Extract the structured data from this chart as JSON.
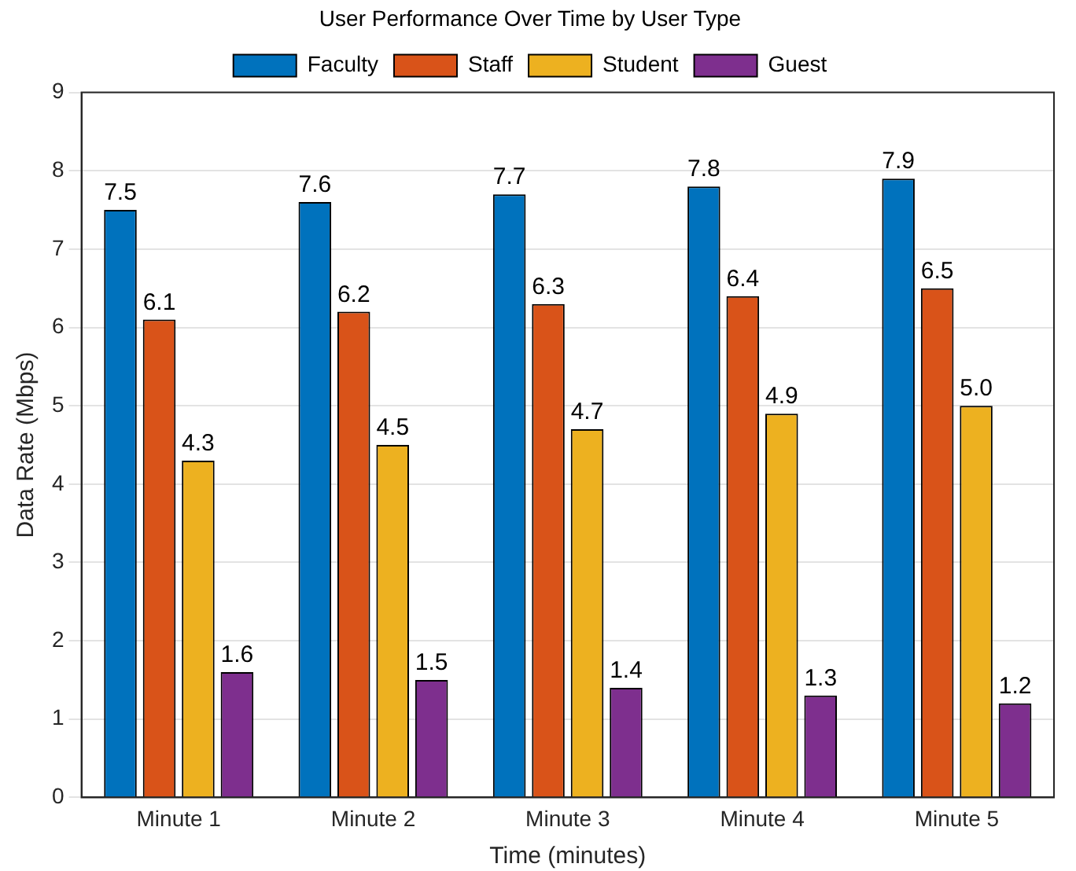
{
  "chart_data": {
    "type": "bar",
    "title": "User Performance Over Time by User Type",
    "xlabel": "Time (minutes)",
    "ylabel": "Data Rate (Mbps)",
    "categories": [
      "Minute 1",
      "Minute 2",
      "Minute 3",
      "Minute 4",
      "Minute 5"
    ],
    "series": [
      {
        "name": "Faculty",
        "color": "#0072bd",
        "values": [
          7.5,
          7.6,
          7.7,
          7.8,
          7.9
        ],
        "value_labels": [
          "7.5",
          "7.6",
          "7.7",
          "7.8",
          "7.9"
        ]
      },
      {
        "name": "Staff",
        "color": "#d95319",
        "values": [
          6.1,
          6.2,
          6.3,
          6.4,
          6.5
        ],
        "value_labels": [
          "6.1",
          "6.2",
          "6.3",
          "6.4",
          "6.5"
        ]
      },
      {
        "name": "Student",
        "color": "#edb120",
        "values": [
          4.3,
          4.5,
          4.7,
          4.9,
          5.0
        ],
        "value_labels": [
          "4.3",
          "4.5",
          "4.7",
          "4.9",
          "5.0"
        ]
      },
      {
        "name": "Guest",
        "color": "#7e2f8e",
        "values": [
          1.6,
          1.5,
          1.4,
          1.3,
          1.2
        ],
        "value_labels": [
          "1.6",
          "1.5",
          "1.4",
          "1.3",
          "1.2"
        ]
      }
    ],
    "ylim": [
      0,
      9
    ],
    "yticks": [
      0,
      1,
      2,
      3,
      4,
      5,
      6,
      7,
      8,
      9
    ],
    "grid": "y",
    "legend": "top"
  }
}
